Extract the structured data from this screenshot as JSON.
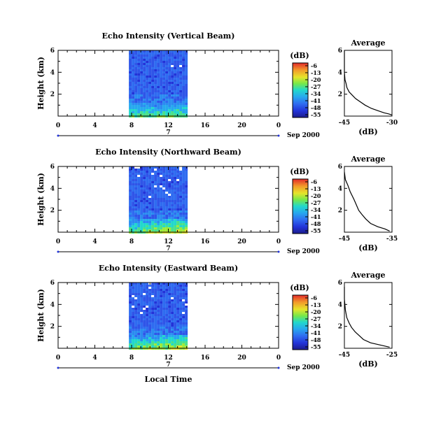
{
  "chart_data": [
    {
      "type": "heatmap",
      "title": "Echo Intensity (Vertical Beam)",
      "ylabel": "Height (km)",
      "yticks": [
        "6",
        "4",
        "2"
      ],
      "xticks": [
        "0",
        "4",
        "8",
        "12",
        "16",
        "20",
        "0"
      ],
      "date_day": "7",
      "date_month": "Sep 2000",
      "colorbar": {
        "unit": "(dB)",
        "ticks": [
          "-6",
          "-13",
          "-20",
          "-27",
          "-34",
          "-41",
          "-48",
          "-55"
        ]
      },
      "data_time_range_hours": [
        7.7,
        13.8
      ],
      "average": {
        "title": "Average",
        "xlabel": "(dB)",
        "xticks": [
          "-45",
          "-30"
        ],
        "yticks": [
          "6",
          "4",
          "2"
        ],
        "xlim": [
          -45,
          -30
        ],
        "ylim": [
          0,
          6
        ],
        "profile": [
          [
            -45.6,
            6.0
          ],
          [
            -45.3,
            5.0
          ],
          [
            -45.0,
            4.0
          ],
          [
            -44.8,
            3.3
          ],
          [
            -44.5,
            3.0
          ],
          [
            -44.2,
            2.6
          ],
          [
            -43.5,
            2.2
          ],
          [
            -42.5,
            1.9
          ],
          [
            -41.5,
            1.6
          ],
          [
            -40.0,
            1.3
          ],
          [
            -38.5,
            1.0
          ],
          [
            -36.5,
            0.7
          ],
          [
            -34.5,
            0.5
          ],
          [
            -32.5,
            0.3
          ],
          [
            -31.0,
            0.2
          ],
          [
            -30.0,
            0.1
          ]
        ]
      }
    },
    {
      "type": "heatmap",
      "title": "Echo Intensity (Northward Beam)",
      "ylabel": "Height (km)",
      "yticks": [
        "6",
        "4",
        "2"
      ],
      "xticks": [
        "0",
        "4",
        "8",
        "12",
        "16",
        "20",
        "0"
      ],
      "date_day": "7",
      "date_month": "Sep 2000",
      "colorbar": {
        "unit": "(dB)",
        "ticks": [
          "-6",
          "-13",
          "-20",
          "-27",
          "-34",
          "-41",
          "-48",
          "-55"
        ]
      },
      "data_time_range_hours": [
        7.7,
        13.8
      ],
      "average": {
        "title": "Average",
        "xlabel": "(dB)",
        "xticks": [
          "-45",
          "-35"
        ],
        "yticks": [
          "6",
          "4",
          "2"
        ],
        "xlim": [
          -45,
          -35
        ],
        "ylim": [
          0,
          6
        ],
        "profile": [
          [
            -45.0,
            5.5
          ],
          [
            -44.8,
            4.8
          ],
          [
            -44.3,
            4.3
          ],
          [
            -43.8,
            3.7
          ],
          [
            -43.0,
            3.0
          ],
          [
            -42.5,
            2.5
          ],
          [
            -42.0,
            2.0
          ],
          [
            -41.3,
            1.6
          ],
          [
            -40.5,
            1.2
          ],
          [
            -39.5,
            0.8
          ],
          [
            -38.0,
            0.5
          ],
          [
            -36.5,
            0.3
          ],
          [
            -35.5,
            0.1
          ]
        ]
      }
    },
    {
      "type": "heatmap",
      "title": "Echo Intensity (Eastward Beam)",
      "ylabel": "Height (km)",
      "yticks": [
        "6",
        "4",
        "2"
      ],
      "xticks": [
        "0",
        "4",
        "8",
        "12",
        "16",
        "20",
        "0"
      ],
      "date_day": "7",
      "date_month": "Sep 2000",
      "xlabel": "Local Time",
      "colorbar": {
        "unit": "(dB)",
        "ticks": [
          "-6",
          "-13",
          "-20",
          "-27",
          "-34",
          "-41",
          "-48",
          "-55"
        ]
      },
      "data_time_range_hours": [
        7.7,
        13.8
      ],
      "average": {
        "title": "Average",
        "xlabel": "(dB)",
        "xticks": [
          "-45",
          "-25"
        ],
        "yticks": [
          "6",
          "4",
          "2"
        ],
        "xlim": [
          -45,
          -25
        ],
        "ylim": [
          0,
          6
        ],
        "profile": [
          [
            -45.3,
            5.6
          ],
          [
            -45.0,
            4.5
          ],
          [
            -44.6,
            3.5
          ],
          [
            -44.0,
            2.8
          ],
          [
            -43.0,
            2.3
          ],
          [
            -42.0,
            1.9
          ],
          [
            -40.5,
            1.5
          ],
          [
            -39.0,
            1.2
          ],
          [
            -37.0,
            0.8
          ],
          [
            -34.0,
            0.5
          ],
          [
            -30.0,
            0.3
          ],
          [
            -26.0,
            0.1
          ]
        ]
      }
    }
  ]
}
